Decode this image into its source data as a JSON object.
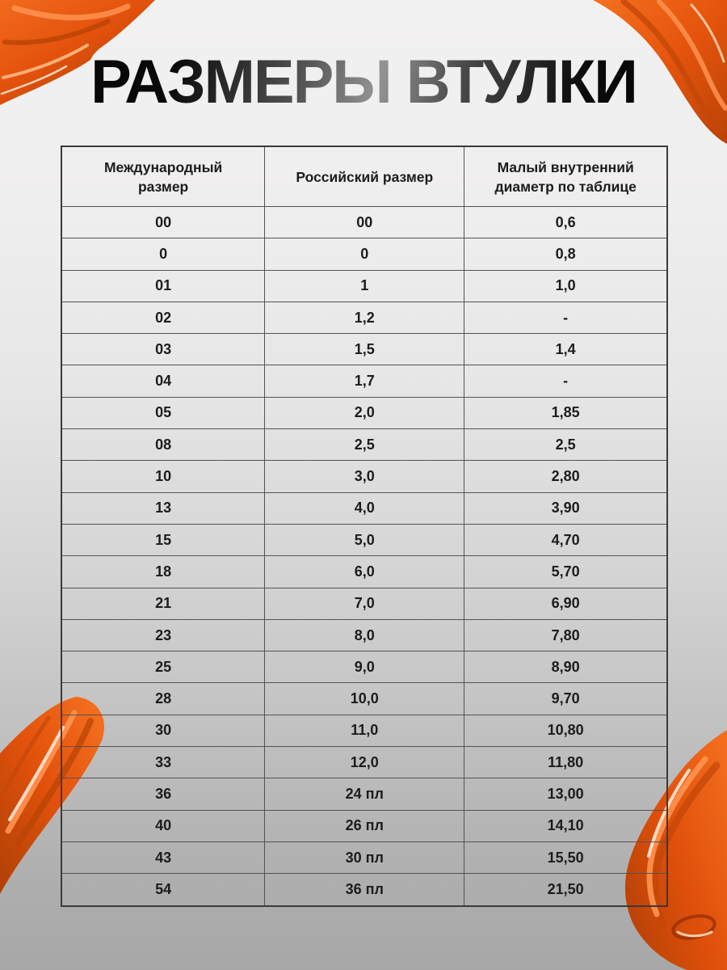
{
  "page": {
    "title": "РАЗМЕРЫ ВТУЛКИ"
  },
  "colors": {
    "background_top": "#f2f1f1",
    "background_bottom": "#a8a7a7",
    "title_dark": "#040404",
    "title_sheen": "#949494",
    "table_border": "#555351",
    "text": "#1c1c1c",
    "paint_orange": "#ec5c12",
    "paint_orange_dark": "#b54106",
    "paint_orange_light": "#ff9350",
    "paint_highlight": "#ffe2cd"
  },
  "decor": {
    "top_left": "paint-smear",
    "top_right": "paint-smear",
    "bottom_left": "paint-smear",
    "bottom_right": "paint-smear"
  },
  "table": {
    "headers": [
      "Международный размер",
      "Российский размер",
      "Малый внутренний диаметр по таблице"
    ],
    "rows": [
      [
        "00",
        "00",
        "0,6"
      ],
      [
        "0",
        "0",
        "0,8"
      ],
      [
        "01",
        "1",
        "1,0"
      ],
      [
        "02",
        "1,2",
        "-"
      ],
      [
        "03",
        "1,5",
        "1,4"
      ],
      [
        "04",
        "1,7",
        "-"
      ],
      [
        "05",
        "2,0",
        "1,85"
      ],
      [
        "08",
        "2,5",
        "2,5"
      ],
      [
        "10",
        "3,0",
        "2,80"
      ],
      [
        "13",
        "4,0",
        "3,90"
      ],
      [
        "15",
        "5,0",
        "4,70"
      ],
      [
        "18",
        "6,0",
        "5,70"
      ],
      [
        "21",
        "7,0",
        "6,90"
      ],
      [
        "23",
        "8,0",
        "7,80"
      ],
      [
        "25",
        "9,0",
        "8,90"
      ],
      [
        "28",
        "10,0",
        "9,70"
      ],
      [
        "30",
        "11,0",
        "10,80"
      ],
      [
        "33",
        "12,0",
        "11,80"
      ],
      [
        "36",
        "24 пл",
        "13,00"
      ],
      [
        "40",
        "26 пл",
        "14,10"
      ],
      [
        "43",
        "30 пл",
        "15,50"
      ],
      [
        "54",
        "36 пл",
        "21,50"
      ]
    ]
  }
}
